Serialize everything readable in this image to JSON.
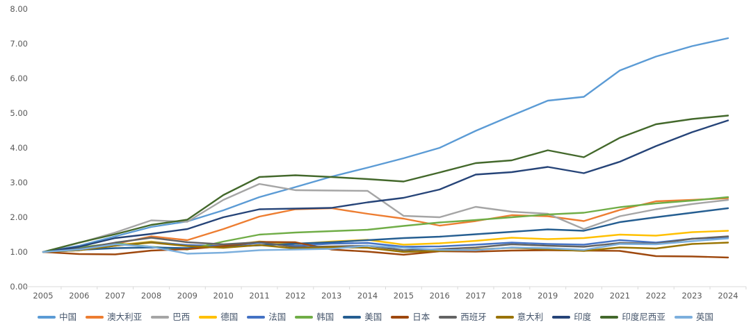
{
  "chart": {
    "title": "",
    "background": "#FFFFFF",
    "axis_text_color": "#595959",
    "axis_line_color": "#D9D9D9",
    "legend_text_color": "#44546A"
  },
  "chart_data": {
    "type": "line",
    "title": "",
    "xlabel": "",
    "ylabel": "",
    "ylim": [
      0,
      8
    ],
    "grid": false,
    "legend_position": "bottom",
    "y_ticks": [
      "0.00",
      "1.00",
      "2.00",
      "3.00",
      "4.00",
      "5.00",
      "6.00",
      "7.00",
      "8.00"
    ],
    "x": [
      "2005",
      "2006",
      "2007",
      "2008",
      "2009",
      "2010",
      "2011",
      "2012",
      "2013",
      "2014",
      "2015",
      "2016",
      "2017",
      "2018",
      "2019",
      "2020",
      "2021",
      "2022",
      "2023",
      "2024"
    ],
    "series": [
      {
        "name": "中国",
        "color": "#5B9BD5",
        "values": [
          1.0,
          1.18,
          1.45,
          1.72,
          1.88,
          2.2,
          2.58,
          2.87,
          3.17,
          3.43,
          3.7,
          4.0,
          4.49,
          4.93,
          5.36,
          5.47,
          6.23,
          6.63,
          6.93,
          7.16
        ]
      },
      {
        "name": "澳大利亚",
        "color": "#ED7D31",
        "values": [
          1.0,
          1.07,
          1.23,
          1.45,
          1.34,
          1.66,
          2.02,
          2.23,
          2.26,
          2.1,
          1.96,
          1.76,
          1.89,
          2.06,
          2.03,
          1.89,
          2.21,
          2.46,
          2.5,
          2.55
        ]
      },
      {
        "name": "巴西",
        "color": "#A5A5A5",
        "values": [
          1.0,
          1.26,
          1.56,
          1.91,
          1.87,
          2.5,
          2.96,
          2.78,
          2.77,
          2.76,
          2.04,
          2.0,
          2.3,
          2.16,
          2.1,
          1.66,
          2.03,
          2.23,
          2.38,
          2.5
        ]
      },
      {
        "name": "德国",
        "color": "#FFC000",
        "values": [
          1.0,
          1.05,
          1.19,
          1.3,
          1.19,
          1.18,
          1.3,
          1.23,
          1.3,
          1.35,
          1.21,
          1.25,
          1.32,
          1.41,
          1.37,
          1.4,
          1.5,
          1.47,
          1.57,
          1.61
        ]
      },
      {
        "name": "法国",
        "color": "#4472C4",
        "values": [
          1.0,
          1.05,
          1.18,
          1.28,
          1.2,
          1.17,
          1.26,
          1.18,
          1.24,
          1.26,
          1.15,
          1.16,
          1.21,
          1.27,
          1.23,
          1.21,
          1.34,
          1.27,
          1.38,
          1.42
        ]
      },
      {
        "name": "韩国",
        "color": "#70AD47",
        "values": [
          1.0,
          1.13,
          1.25,
          1.15,
          1.07,
          1.3,
          1.5,
          1.56,
          1.6,
          1.64,
          1.75,
          1.85,
          1.92,
          2.0,
          2.08,
          2.13,
          2.29,
          2.4,
          2.48,
          2.58
        ]
      },
      {
        "name": "美国",
        "color": "#255E91",
        "values": [
          1.0,
          1.06,
          1.11,
          1.13,
          1.11,
          1.15,
          1.19,
          1.24,
          1.28,
          1.34,
          1.4,
          1.44,
          1.51,
          1.58,
          1.65,
          1.61,
          1.86,
          2.0,
          2.13,
          2.26
        ]
      },
      {
        "name": "日本",
        "color": "#9E480E",
        "values": [
          1.0,
          0.94,
          0.93,
          1.04,
          1.08,
          1.17,
          1.29,
          1.28,
          1.07,
          1.01,
          0.92,
          1.02,
          1.01,
          1.04,
          1.05,
          1.04,
          1.03,
          0.88,
          0.87,
          0.84
        ]
      },
      {
        "name": "西班牙",
        "color": "#636363",
        "values": [
          1.0,
          1.09,
          1.27,
          1.41,
          1.28,
          1.22,
          1.28,
          1.14,
          1.16,
          1.18,
          1.05,
          1.08,
          1.13,
          1.22,
          1.18,
          1.15,
          1.26,
          1.24,
          1.38,
          1.45
        ]
      },
      {
        "name": "意大利",
        "color": "#997300",
        "values": [
          1.0,
          1.05,
          1.18,
          1.27,
          1.17,
          1.12,
          1.2,
          1.1,
          1.14,
          1.12,
          1.0,
          1.03,
          1.07,
          1.12,
          1.08,
          1.03,
          1.13,
          1.1,
          1.23,
          1.27
        ]
      },
      {
        "name": "印度",
        "color": "#264478",
        "values": [
          1.0,
          1.15,
          1.4,
          1.52,
          1.66,
          2.0,
          2.23,
          2.25,
          2.27,
          2.43,
          2.56,
          2.8,
          3.23,
          3.3,
          3.45,
          3.27,
          3.6,
          4.05,
          4.45,
          4.79
        ]
      },
      {
        "name": "印度尼西亚",
        "color": "#43682B",
        "values": [
          1.0,
          1.27,
          1.51,
          1.78,
          1.93,
          2.64,
          3.16,
          3.21,
          3.16,
          3.1,
          3.03,
          3.29,
          3.56,
          3.64,
          3.93,
          3.73,
          4.29,
          4.68,
          4.83,
          4.93
        ]
      },
      {
        "name": "英国",
        "color": "#7CAFDD",
        "values": [
          1.0,
          1.07,
          1.22,
          1.15,
          0.95,
          0.98,
          1.05,
          1.07,
          1.09,
          1.18,
          1.12,
          1.06,
          1.05,
          1.13,
          1.11,
          1.06,
          1.23,
          1.22,
          1.31,
          1.39
        ]
      }
    ]
  }
}
